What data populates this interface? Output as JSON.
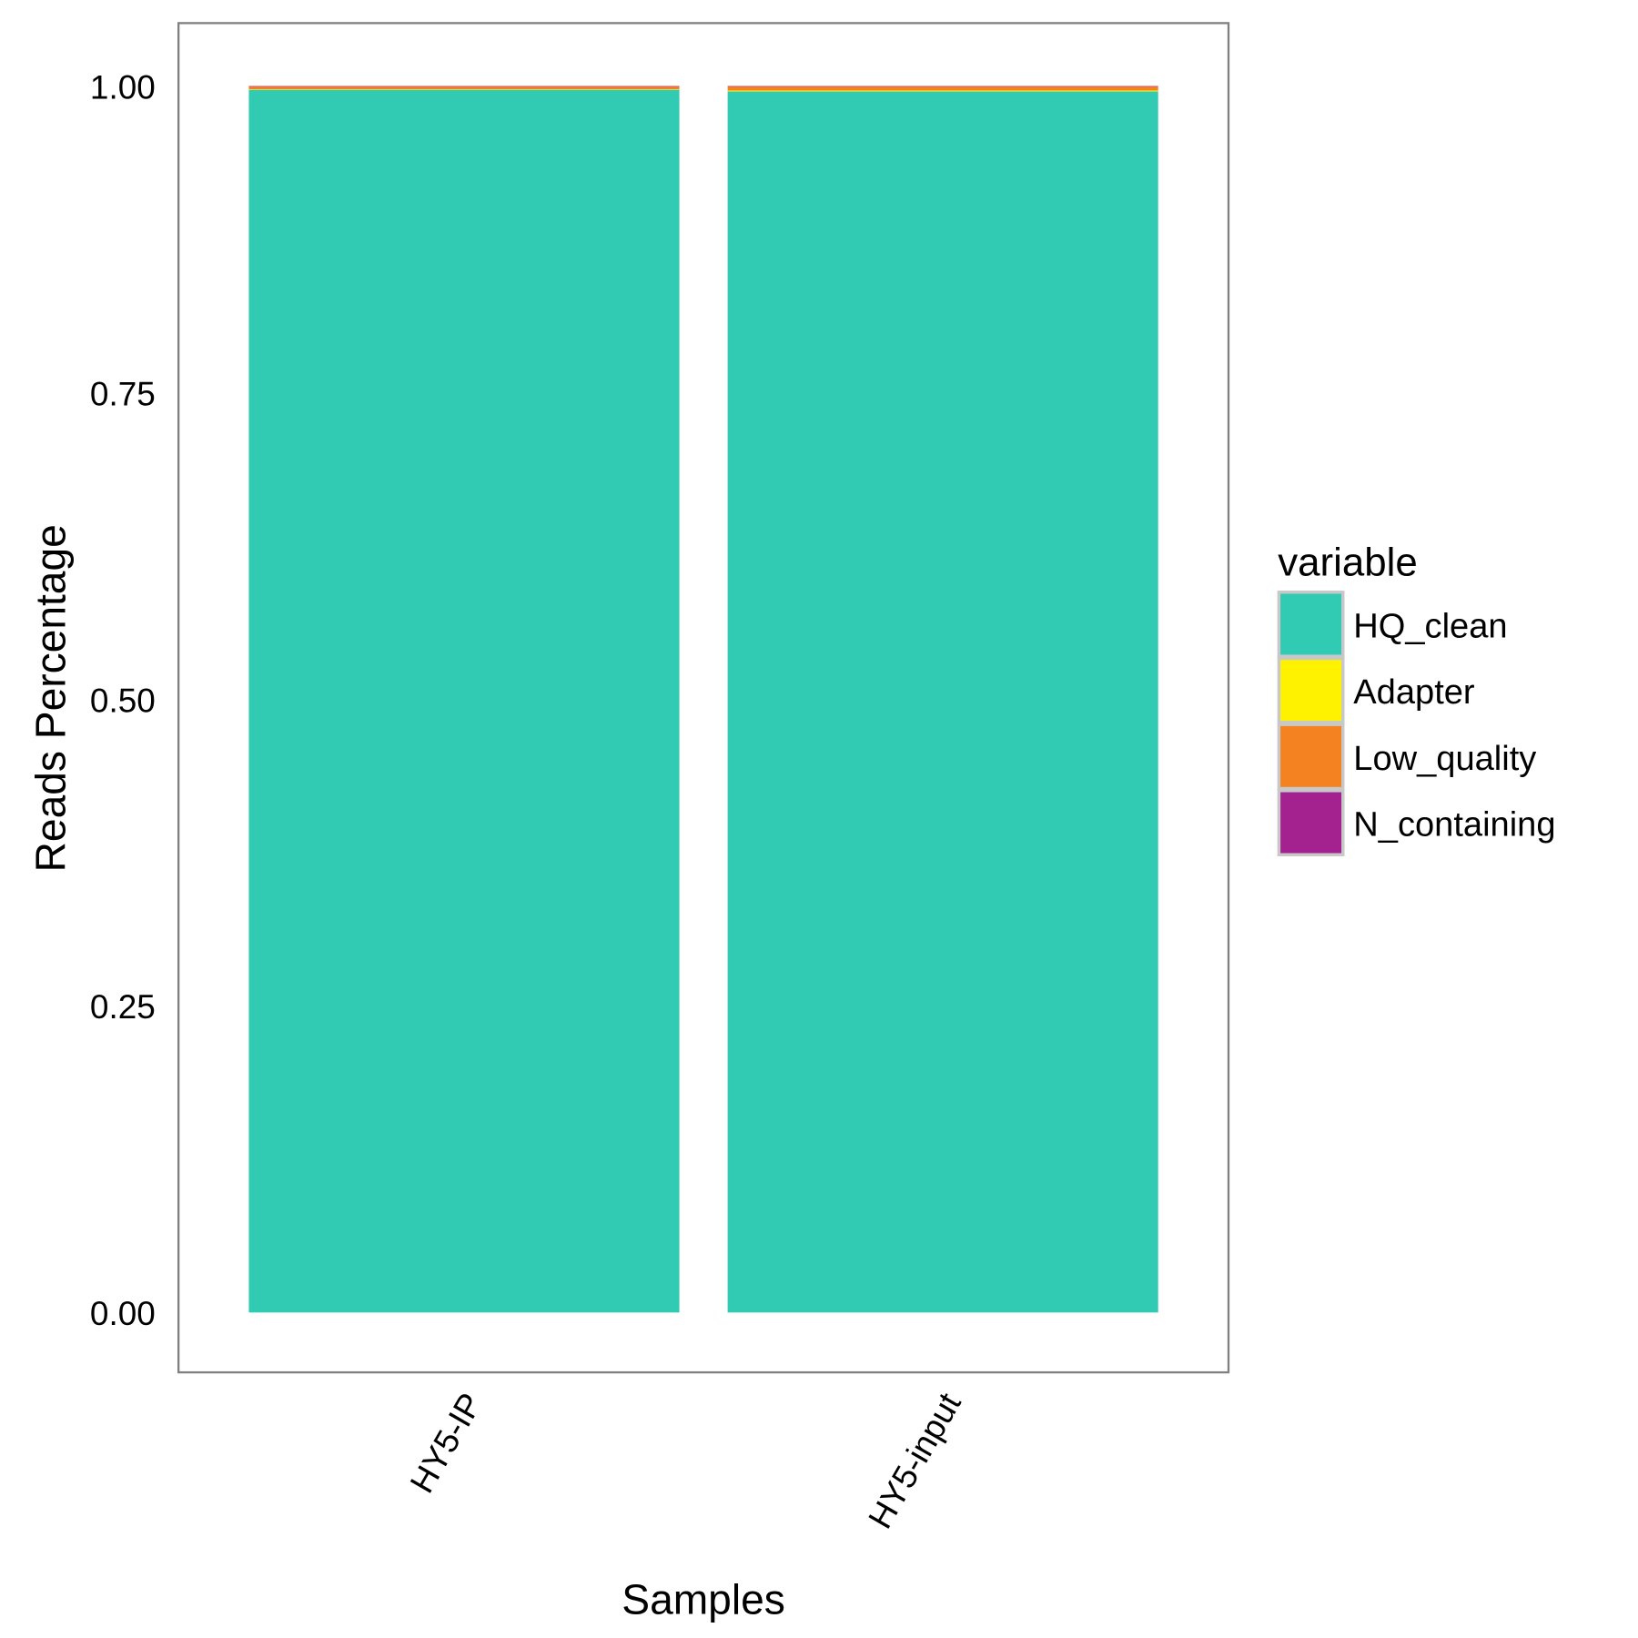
{
  "chart_data": {
    "type": "bar",
    "stacked": true,
    "title": "",
    "xlabel": "Samples",
    "ylabel": "Reads Percentage",
    "ylim": [
      -0.05,
      1.05
    ],
    "yticks": [
      0,
      0.25,
      0.5,
      0.75,
      1.0
    ],
    "ytick_labels": [
      "0.00",
      "0.25",
      "0.50",
      "0.75",
      "1.00"
    ],
    "categories": [
      "HY5-IP",
      "HY5-input"
    ],
    "legend": {
      "title": "variable",
      "placement": "right"
    },
    "series": [
      {
        "name": "HQ_clean",
        "color": "#30CBB2",
        "values": [
          0.997,
          0.9956
        ]
      },
      {
        "name": "Adapter",
        "color": "#FFF200",
        "values": [
          0.0004,
          0.0008
        ]
      },
      {
        "name": "Low_quality",
        "color": "#F58220",
        "values": [
          0.0025,
          0.0035
        ]
      },
      {
        "name": "N_containing",
        "color": "#A3228F",
        "values": [
          0.0001,
          0.0001
        ]
      }
    ]
  }
}
